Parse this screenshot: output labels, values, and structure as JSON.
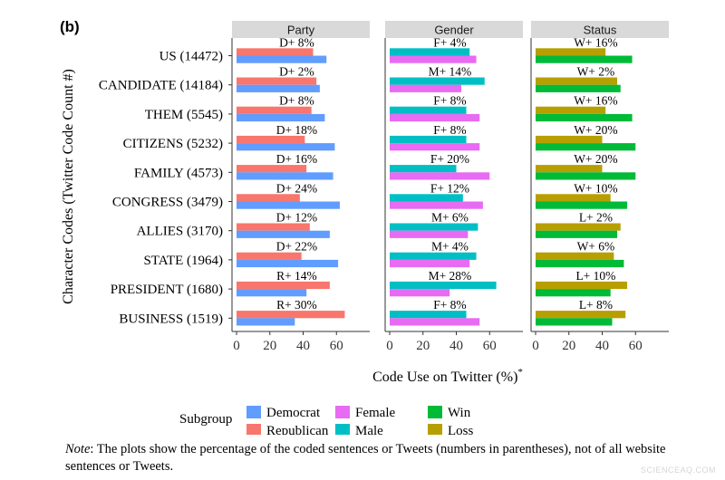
{
  "figure": {
    "panel_label": "(b)",
    "note_label": "Note",
    "note_text": ": The plots show the percentage of the coded sentences or Tweets (numbers in parentheses), not of all website sentences or Tweets.",
    "watermark": "SCIENCEAQ.COM"
  },
  "chart_data": {
    "type": "bar",
    "orientation": "horizontal",
    "xlabel": "Code Use on Twitter (%)",
    "xlabel_superscript": "*",
    "ylabel": "Character Codes (Twitter Code Count #)",
    "xlim": [
      0,
      80
    ],
    "xticks": [
      0,
      20,
      40,
      60
    ],
    "legend_title": "Subgroup",
    "categories": [
      "US (14472)",
      "CANDIDATE (14184)",
      "THEM (5545)",
      "CITIZENS (5232)",
      "FAMILY (4573)",
      "CONGRESS (3479)",
      "ALLIES (3170)",
      "STATE (1964)",
      "PRESIDENT (1680)",
      "BUSINESS (1519)"
    ],
    "panels": [
      {
        "title": "Party",
        "series": [
          {
            "name": "Republican",
            "color": "#F8766D",
            "values": [
              46,
              48,
              45,
              41,
              42,
              38,
              44,
              39,
              56,
              65
            ]
          },
          {
            "name": "Democrat",
            "color": "#619CFF",
            "values": [
              54,
              50,
              53,
              59,
              58,
              62,
              56,
              61,
              42,
              35
            ]
          }
        ],
        "annotations": [
          "D+ 8%",
          "D+ 2%",
          "D+ 8%",
          "D+ 18%",
          "D+ 16%",
          "D+ 24%",
          "D+ 12%",
          "D+ 22%",
          "R+ 14%",
          "R+ 30%"
        ]
      },
      {
        "title": "Gender",
        "series": [
          {
            "name": "Male",
            "color": "#00BFC4",
            "values": [
              48,
              57,
              46,
              46,
              40,
              44,
              53,
              52,
              64,
              46
            ]
          },
          {
            "name": "Female",
            "color": "#E76BF3",
            "values": [
              52,
              43,
              54,
              54,
              60,
              56,
              47,
              48,
              36,
              54
            ]
          }
        ],
        "annotations": [
          "F+ 4%",
          "M+ 14%",
          "F+ 8%",
          "F+ 8%",
          "F+ 20%",
          "F+ 12%",
          "M+ 6%",
          "M+ 4%",
          "M+ 28%",
          "F+ 8%"
        ]
      },
      {
        "title": "Status",
        "series": [
          {
            "name": "Loss",
            "color": "#B79F00",
            "values": [
              42,
              49,
              42,
              40,
              40,
              45,
              51,
              47,
              55,
              54
            ]
          },
          {
            "name": "Win",
            "color": "#00BA38",
            "values": [
              58,
              51,
              58,
              60,
              60,
              55,
              49,
              53,
              45,
              46
            ]
          }
        ],
        "annotations": [
          "W+ 16%",
          "W+ 2%",
          "W+ 16%",
          "W+ 20%",
          "W+ 20%",
          "W+ 10%",
          "L+ 2%",
          "W+ 6%",
          "L+ 10%",
          "L+ 8%"
        ]
      }
    ],
    "legend": [
      {
        "name": "Democrat",
        "color": "#619CFF"
      },
      {
        "name": "Republican",
        "color": "#F8766D"
      },
      {
        "name": "Female",
        "color": "#E76BF3"
      },
      {
        "name": "Male",
        "color": "#00BFC4"
      },
      {
        "name": "Win",
        "color": "#00BA38"
      },
      {
        "name": "Loss",
        "color": "#B79F00"
      }
    ],
    "legend_position": "bottom",
    "grid": false
  }
}
